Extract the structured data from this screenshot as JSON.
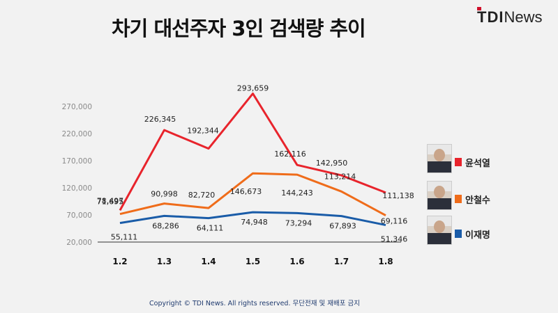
{
  "title": "차기 대선주자 3인 검색량 추이",
  "brand": {
    "tdi": "TDI",
    "news": "News"
  },
  "footer": "Copyright © TDI News. All rights reserved. 무단전재 및 재배포 금지",
  "chart_data": {
    "type": "line",
    "title": "차기 대선주자 3인 검색량 추이",
    "xlabel": "",
    "ylabel": "",
    "categories": [
      "1.2",
      "1.3",
      "1.4",
      "1.5",
      "1.6",
      "1.7",
      "1.8"
    ],
    "yticks": [
      "270,000",
      "220,000",
      "170,000",
      "120,000",
      "70,000",
      "20,000"
    ],
    "ytick_values": [
      270000,
      220000,
      170000,
      120000,
      70000,
      20000
    ],
    "ylim": [
      20000,
      300000
    ],
    "grid": false,
    "legend_position": "right",
    "series": [
      {
        "name": "윤석열",
        "color": "#e8242c",
        "values": [
          78497,
          226345,
          192344,
          293659,
          162116,
          142950,
          111138
        ],
        "labels": [
          "78,497",
          "226,345",
          "192,344",
          "293,659",
          "162,116",
          "142,950",
          "111,138"
        ]
      },
      {
        "name": "안철수",
        "color": "#ef6c1a",
        "values": [
          71695,
          90998,
          82720,
          146673,
          144243,
          113214,
          69116
        ],
        "labels": [
          "71,695",
          "90,998",
          "82,720",
          "146,673",
          "144,243",
          "113,214",
          "69,116"
        ]
      },
      {
        "name": "이재명",
        "color": "#1a5ca8",
        "values": [
          55111,
          68286,
          64111,
          74948,
          73294,
          67893,
          51346
        ],
        "labels": [
          "55,111",
          "68,286",
          "64,111",
          "74,948",
          "73,294",
          "67,893",
          "51,346"
        ]
      }
    ]
  }
}
